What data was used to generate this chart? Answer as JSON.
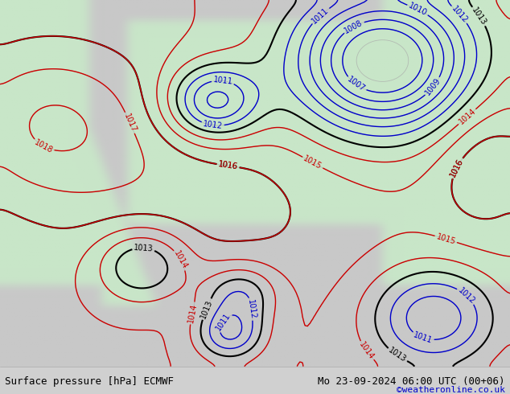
{
  "title_left": "Surface pressure [hPa] ECMWF",
  "title_right": "Mo 23-09-2024 06:00 UTC (00+06)",
  "credit": "©weatheronline.co.uk",
  "bg_color": "#d0d0d0",
  "land_color_low": "#c8e6c8",
  "land_color_high": "#a8d8a8",
  "text_color_black": "#000000",
  "text_color_red": "#cc0000",
  "text_color_blue": "#0000cc",
  "text_color_gray": "#888888",
  "contour_black": "#000000",
  "contour_red": "#cc0000",
  "contour_blue": "#0000cc",
  "contour_gray": "#aaaaaa",
  "bottom_bar_color": "#e8e8e8",
  "figsize": [
    6.34,
    4.9
  ],
  "dpi": 100
}
